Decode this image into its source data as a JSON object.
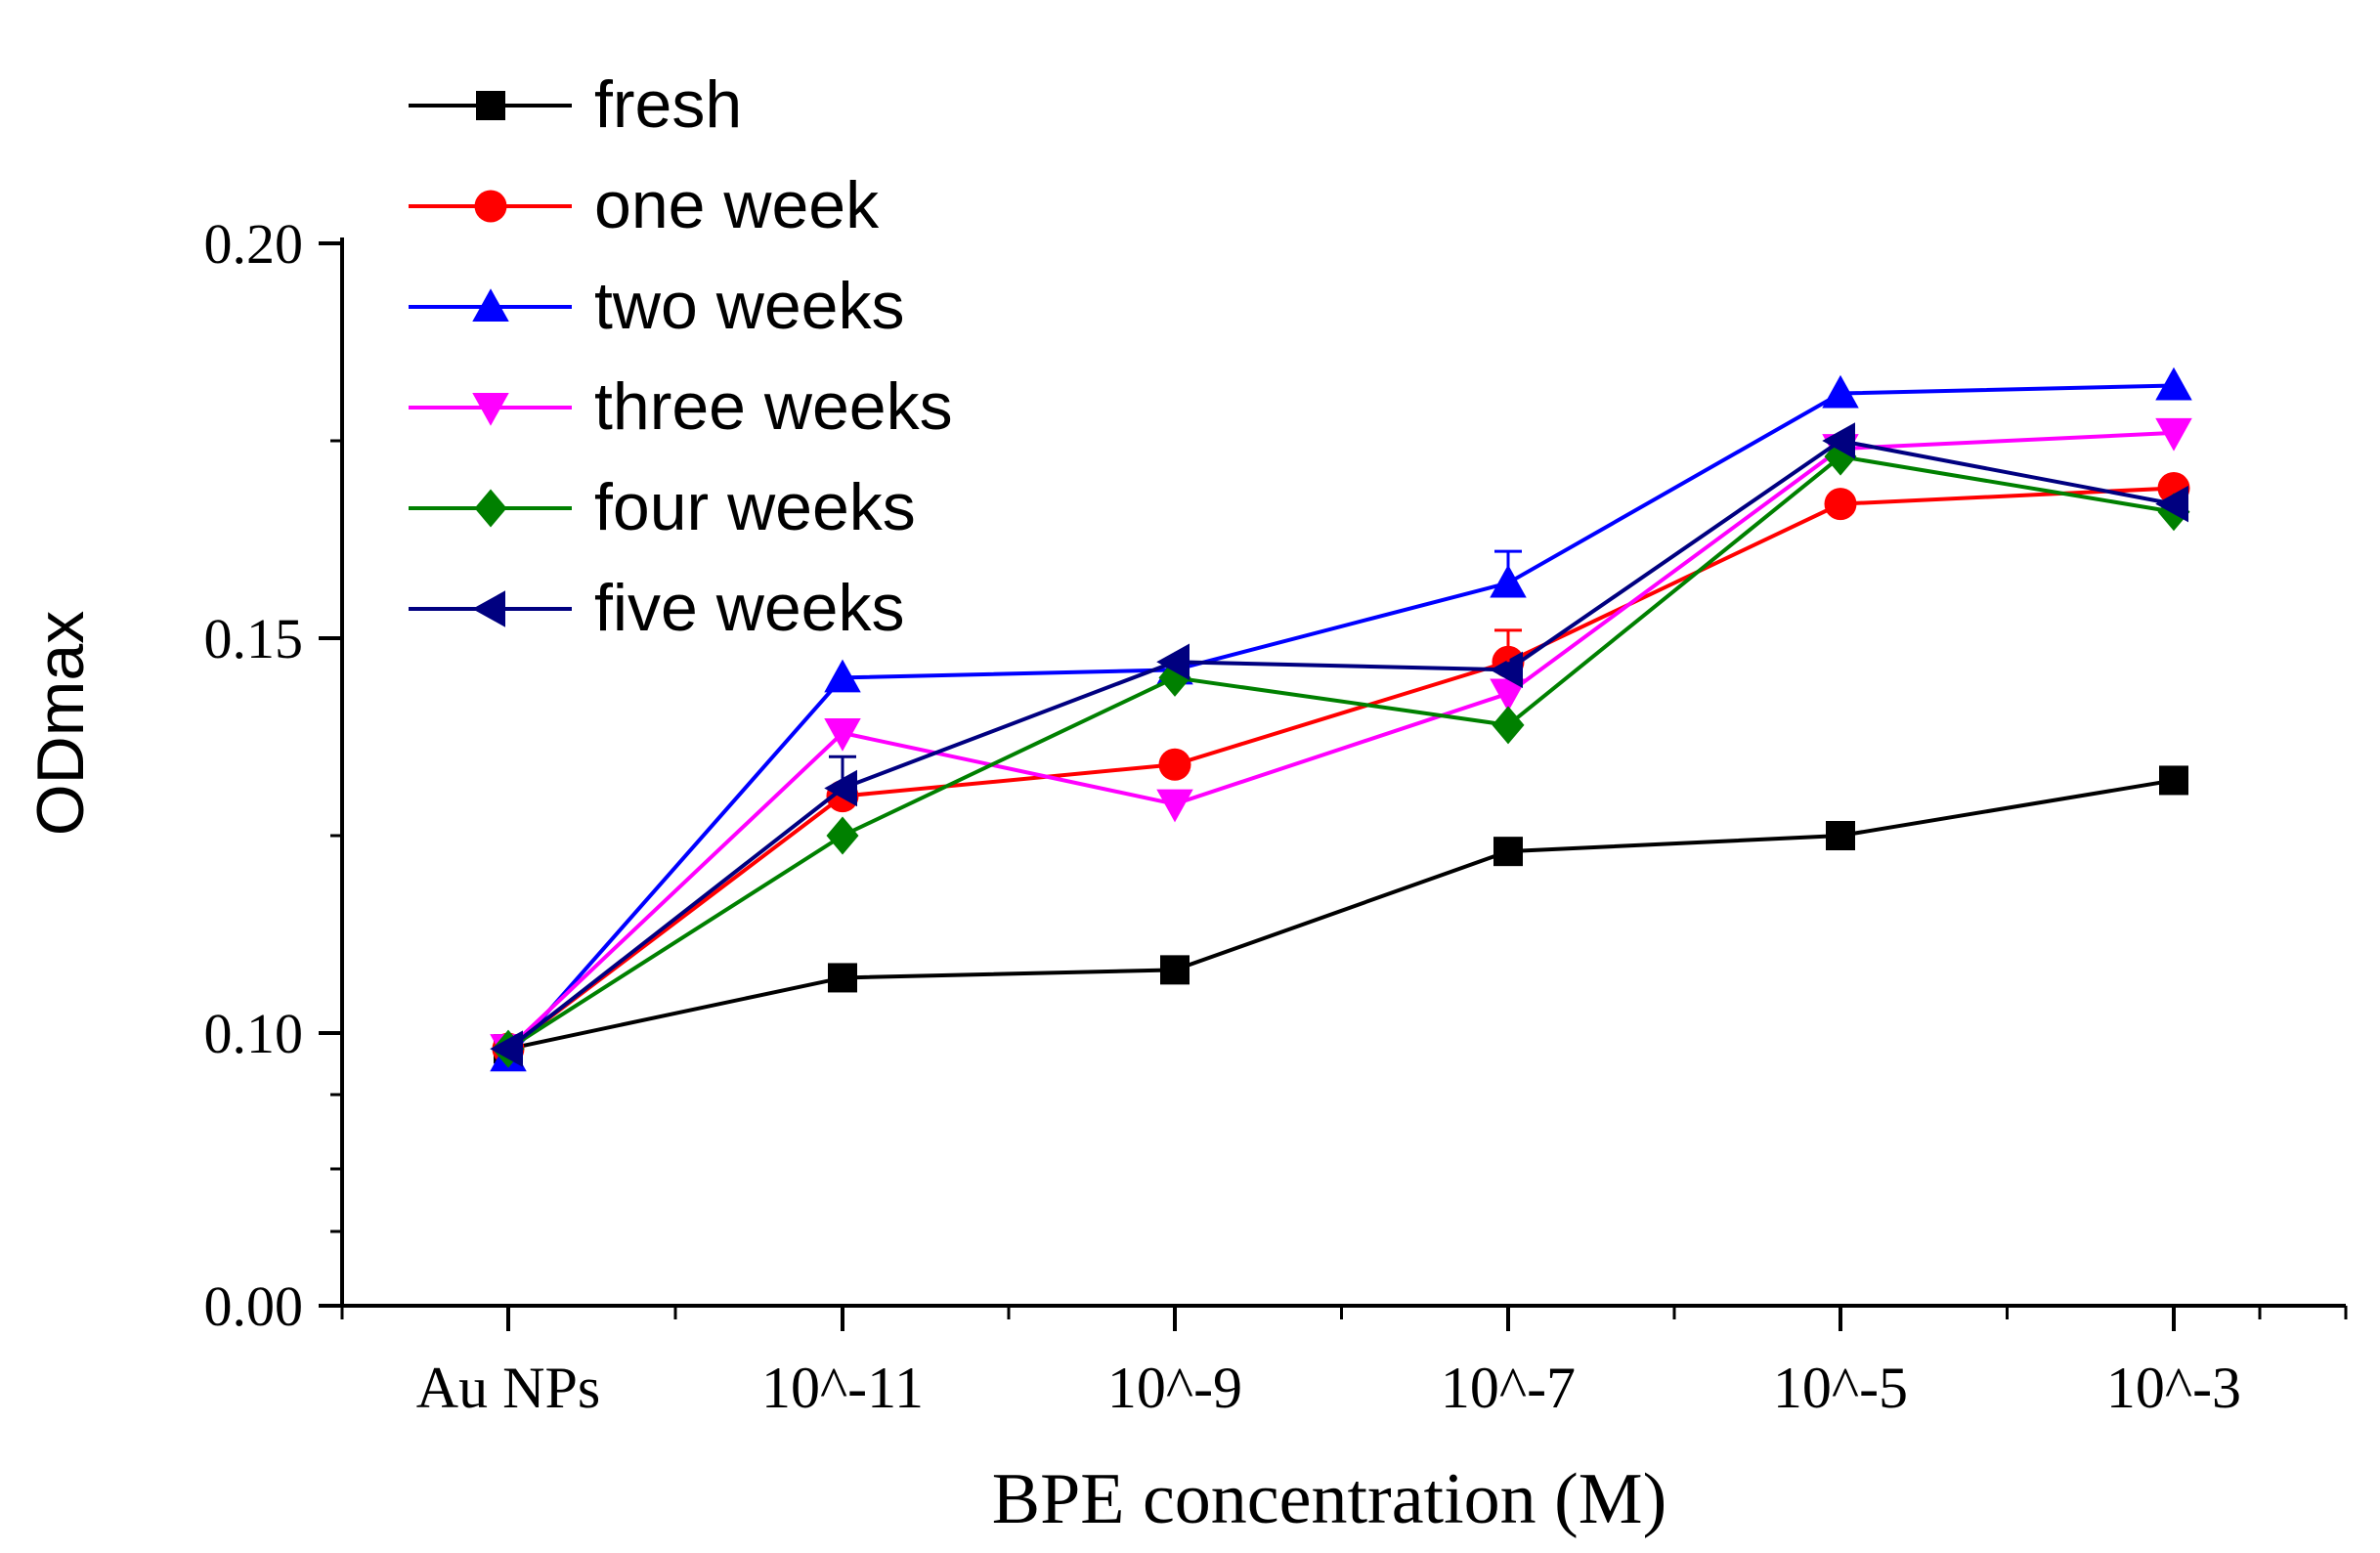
{
  "chart_data": {
    "type": "line",
    "title": "",
    "xlabel": "BPE concentration (M)",
    "ylabel": "ODmax",
    "categories": [
      "Au NPs",
      "10^-11",
      "10^-9",
      "10^-7",
      "10^-5",
      "10^-3"
    ],
    "yticks": [
      "0.00",
      "0.10",
      "0.15",
      "0.20"
    ],
    "axis_break": "0.00 to 0.10 compressed (broken axis)",
    "legend_position": "top-left",
    "series": [
      {
        "name": "fresh",
        "color": "#000000",
        "marker": "square",
        "values": [
          0.098,
          0.107,
          0.108,
          0.123,
          0.125,
          0.132
        ]
      },
      {
        "name": "one week",
        "color": "#ff0000",
        "marker": "circle",
        "values": [
          0.098,
          0.13,
          0.134,
          0.147,
          0.167,
          0.169
        ]
      },
      {
        "name": "two weeks",
        "color": "#0000ff",
        "marker": "triangle-up",
        "values": [
          0.097,
          0.145,
          0.146,
          0.157,
          0.181,
          0.182
        ]
      },
      {
        "name": "three weeks",
        "color": "#ff00ff",
        "marker": "triangle-down",
        "values": [
          0.098,
          0.138,
          0.129,
          0.143,
          0.174,
          0.176
        ]
      },
      {
        "name": "four weeks",
        "color": "#008000",
        "marker": "diamond",
        "values": [
          0.098,
          0.125,
          0.145,
          0.139,
          0.173,
          0.166
        ]
      },
      {
        "name": "five weeks",
        "color": "#000080",
        "marker": "triangle-left",
        "values": [
          0.098,
          0.131,
          0.147,
          0.146,
          0.175,
          0.167
        ]
      }
    ]
  }
}
